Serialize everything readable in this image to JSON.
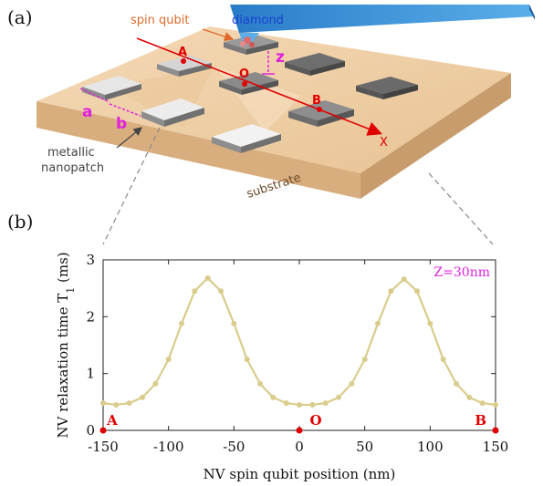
{
  "panel_a": {
    "label": "(a)",
    "labels": {
      "spin_qubit": "spin qubit",
      "diamond": "diamond",
      "point_A": "A",
      "point_O": "O",
      "point_B": "B",
      "z": "z",
      "x": "X",
      "a": "a",
      "b": "b",
      "metallic_line1": "metallic",
      "metallic_line2": "nanopatch",
      "substrate": "substrate"
    },
    "colors": {
      "substrate": "#ecc9a0",
      "patch": "#9a9a9a",
      "diamond": "#3d8fd4",
      "axis_line": "#e00000",
      "magenta": "#e020e0",
      "orange_label": "#e06a2a",
      "blue_label": "#1a3fd0",
      "substrate_text": "#6b4a2a",
      "dark_text": "#444444"
    }
  },
  "panel_b": {
    "label": "(b)",
    "annotation": "Z=30nm",
    "markers": [
      {
        "x": -150,
        "label": "A"
      },
      {
        "x": 0,
        "label": "O"
      },
      {
        "x": 150,
        "label": "B"
      }
    ]
  },
  "chart_data": {
    "type": "line",
    "xlabel": "NV spin qubit position (nm)",
    "ylabel": "NV relaxation time T",
    "ylabel_sub": "1",
    "ylabel_unit": " (ms)",
    "xlim": [
      -150,
      150
    ],
    "ylim": [
      0,
      3
    ],
    "xticks": [
      -150,
      -100,
      -50,
      0,
      50,
      100,
      150
    ],
    "xtick_labels": [
      "-150",
      "-100",
      "-50",
      "0",
      "50",
      "100",
      "150"
    ],
    "yticks": [
      0,
      1,
      2,
      3
    ],
    "ytick_labels": [
      "0",
      "1",
      "2",
      "3"
    ],
    "grid": false,
    "series": [
      {
        "color": "#d9cc8c",
        "x": [
          -150,
          -140,
          -130,
          -120,
          -110,
          -100,
          -90,
          -80,
          -70,
          -60,
          -50,
          -40,
          -30,
          -20,
          -10,
          0,
          10,
          20,
          30,
          40,
          50,
          60,
          70,
          80,
          90,
          100,
          110,
          120,
          130,
          140,
          150
        ],
        "y": [
          0.48,
          0.45,
          0.48,
          0.58,
          0.82,
          1.25,
          1.88,
          2.45,
          2.68,
          2.45,
          1.88,
          1.25,
          0.82,
          0.58,
          0.48,
          0.45,
          0.45,
          0.48,
          0.58,
          0.82,
          1.25,
          1.88,
          2.45,
          2.66,
          2.45,
          1.88,
          1.25,
          0.82,
          0.58,
          0.48,
          0.45
        ]
      }
    ]
  }
}
